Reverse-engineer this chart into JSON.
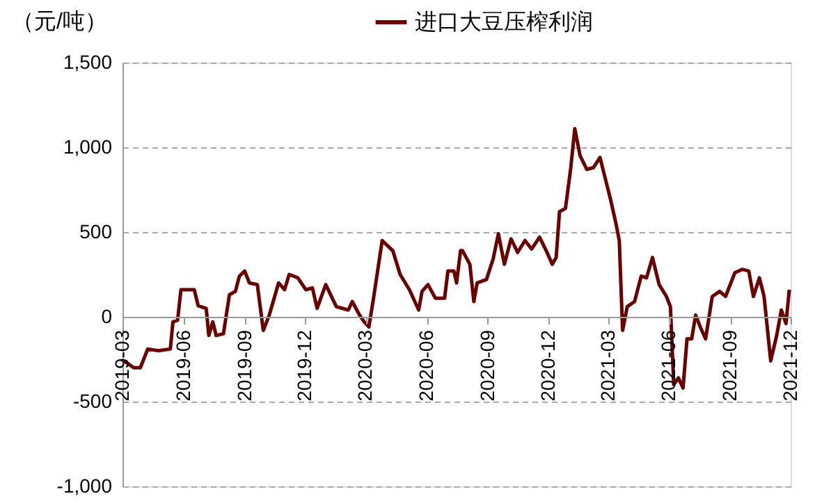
{
  "chart_data": {
    "type": "line",
    "ylabel": "（元/吨）",
    "xlim": [
      "2019-03-01",
      "2021-12-01"
    ],
    "xticks": [
      {
        "value": "2019-03-01",
        "label": "2019-03"
      },
      {
        "value": "2019-06-01",
        "label": "2019-06"
      },
      {
        "value": "2019-09-01",
        "label": "2019-09"
      },
      {
        "value": "2019-12-01",
        "label": "2019-12"
      },
      {
        "value": "2020-03-01",
        "label": "2020-03"
      },
      {
        "value": "2020-06-01",
        "label": "2020-06"
      },
      {
        "value": "2020-09-01",
        "label": "2020-09"
      },
      {
        "value": "2020-12-01",
        "label": "2020-12"
      },
      {
        "value": "2021-03-01",
        "label": "2021-03"
      },
      {
        "value": "2021-06-01",
        "label": "2021-06"
      },
      {
        "value": "2021-09-01",
        "label": "2021-09"
      },
      {
        "value": "2021-12-01",
        "label": "2021-12"
      }
    ],
    "ylim": [
      -1000,
      1500
    ],
    "yticks": [
      {
        "value": -1000,
        "label": "-1,000"
      },
      {
        "value": -500,
        "label": "-500"
      },
      0,
      {
        "value": 500,
        "label": "500"
      },
      {
        "value": 1000,
        "label": "1,000"
      },
      {
        "value": 1500,
        "label": "1,500"
      }
    ],
    "grid": "y",
    "legend": "top",
    "line_style": "solid",
    "marker": "none",
    "x": [
      "2019-03-03",
      "2019-03-18",
      "2019-03-28",
      "2019-04-08",
      "2019-04-24",
      "2019-05-12",
      "2019-05-16",
      "2019-05-23",
      "2019-05-28",
      "2019-06-17",
      "2019-06-23",
      "2019-07-05",
      "2019-07-09",
      "2019-07-15",
      "2019-07-20",
      "2019-07-31",
      "2019-08-09",
      "2019-08-18",
      "2019-08-24",
      "2019-09-01",
      "2019-09-08",
      "2019-09-20",
      "2019-09-29",
      "2019-10-08",
      "2019-10-22",
      "2019-10-31",
      "2019-11-07",
      "2019-11-20",
      "2019-12-02",
      "2019-12-12",
      "2019-12-19",
      "2020-01-01",
      "2020-01-17",
      "2020-02-04",
      "2020-02-10",
      "2020-02-21",
      "2020-02-28",
      "2020-03-06",
      "2020-03-13",
      "2020-03-26",
      "2020-04-11",
      "2020-04-22",
      "2020-05-06",
      "2020-05-20",
      "2020-05-25",
      "2020-06-03",
      "2020-06-14",
      "2020-06-28",
      "2020-07-03",
      "2020-07-12",
      "2020-07-16",
      "2020-07-22",
      "2020-07-25",
      "2020-08-05",
      "2020-08-11",
      "2020-08-16",
      "2020-08-30",
      "2020-09-09",
      "2020-09-17",
      "2020-09-26",
      "2020-10-06",
      "2020-10-16",
      "2020-10-27",
      "2020-11-06",
      "2020-11-18",
      "2020-11-28",
      "2020-12-07",
      "2020-12-13",
      "2020-12-18",
      "2020-12-27",
      "2021-01-04",
      "2021-01-10",
      "2021-01-18",
      "2021-01-28",
      "2021-02-07",
      "2021-02-17",
      "2021-02-24",
      "2021-03-05",
      "2021-03-13",
      "2021-03-18",
      "2021-03-23",
      "2021-03-30",
      "2021-04-10",
      "2021-04-20",
      "2021-04-28",
      "2021-05-07",
      "2021-05-17",
      "2021-05-28",
      "2021-06-03",
      "2021-06-08",
      "2021-06-15",
      "2021-06-22",
      "2021-06-28",
      "2021-07-05",
      "2021-07-11",
      "2021-07-19",
      "2021-07-26",
      "2021-08-05",
      "2021-08-16",
      "2021-08-25",
      "2021-09-08",
      "2021-09-19",
      "2021-09-29",
      "2021-10-06",
      "2021-10-15",
      "2021-10-22",
      "2021-11-01",
      "2021-11-10",
      "2021-11-17",
      "2021-11-24",
      "2021-11-29"
    ],
    "series": [
      {
        "name": "进口大豆压榨利润",
        "color": "#6b0000",
        "values": [
          -260,
          -300,
          -300,
          -190,
          -200,
          -190,
          -30,
          -20,
          160,
          160,
          65,
          50,
          -110,
          -30,
          -110,
          -100,
          130,
          150,
          240,
          270,
          200,
          190,
          -80,
          10,
          200,
          160,
          250,
          230,
          160,
          170,
          50,
          190,
          60,
          40,
          90,
          10,
          -30,
          -60,
          110,
          450,
          390,
          250,
          160,
          40,
          150,
          190,
          110,
          110,
          270,
          270,
          200,
          390,
          390,
          310,
          90,
          200,
          220,
          340,
          490,
          310,
          460,
          380,
          450,
          400,
          470,
          390,
          310,
          350,
          620,
          640,
          880,
          1110,
          950,
          870,
          880,
          940,
          830,
          690,
          550,
          450,
          -80,
          60,
          90,
          240,
          230,
          350,
          190,
          120,
          60,
          -400,
          -360,
          -420,
          -130,
          -130,
          10,
          -70,
          -130,
          120,
          150,
          120,
          260,
          280,
          270,
          120,
          230,
          120,
          -260,
          -110,
          40,
          -40,
          160
        ]
      }
    ]
  }
}
